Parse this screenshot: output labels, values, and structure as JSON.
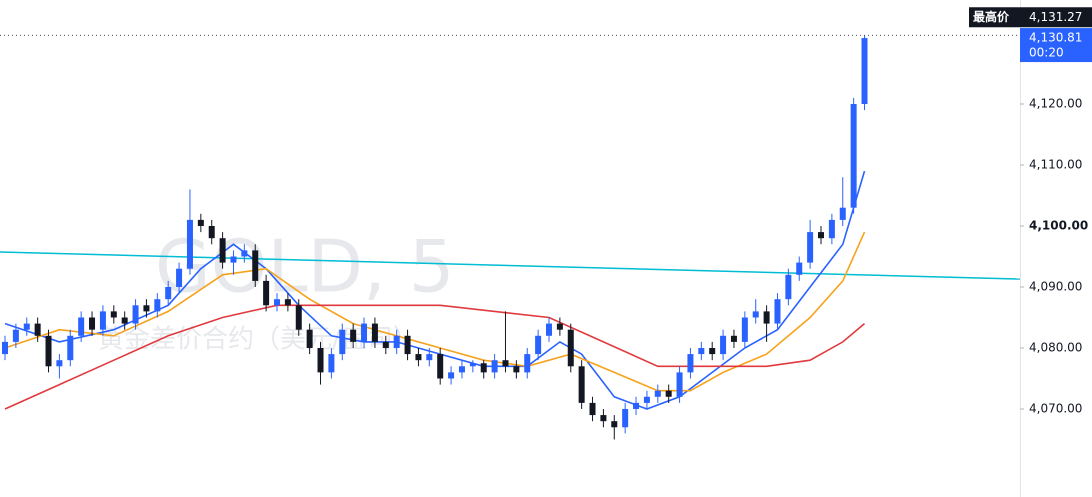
{
  "chart_data": {
    "type": "candlestick",
    "watermark": "GOLD, 5",
    "subtitle": "黄金差价合约（美元/盎司）",
    "ylim": [
      4055.57,
      4137.05
    ],
    "yticks": [
      {
        "value": 4070,
        "label": "4,070.00"
      },
      {
        "value": 4080,
        "label": "4,080.00"
      },
      {
        "value": 4090,
        "label": "4,090.00"
      },
      {
        "value": 4100,
        "label": "4,100.00"
      },
      {
        "value": 4110,
        "label": "4,110.00"
      },
      {
        "value": 4120,
        "label": "4,120.00"
      }
    ],
    "up_color": "#2962ff",
    "down_color": "#131722",
    "open": [
      4079,
      4081,
      4083,
      4084,
      4082,
      4077,
      4078,
      4082,
      4085,
      4083,
      4086,
      4085,
      4084,
      4087,
      4086,
      4088,
      4090,
      4093,
      4101,
      4100,
      4098,
      4094,
      4095,
      4096,
      4091,
      4087,
      4088,
      4087,
      4083,
      4080,
      4076,
      4079,
      4083,
      4081,
      4084,
      4081,
      4080,
      4082,
      4079,
      4078,
      4079,
      4075,
      4076,
      4077,
      4077.5,
      4076,
      4078,
      4077,
      4076,
      4079,
      4082,
      4084,
      4083,
      4077,
      4071,
      4069,
      4068,
      4067,
      4070,
      4071,
      4072,
      4073,
      4072,
      4076,
      4079,
      4080,
      4079,
      4082,
      4081,
      4085,
      4086,
      4084,
      4088,
      4092,
      4094,
      4099,
      4098,
      4101,
      4103,
      4120
    ],
    "high": [
      4082,
      4084,
      4085,
      4085,
      4083,
      4079,
      4083,
      4086,
      4086,
      4087,
      4087,
      4086,
      4088,
      4088,
      4089,
      4091,
      4094,
      4106,
      4102,
      4101,
      4099,
      4096,
      4097,
      4097,
      4092,
      4089,
      4089,
      4088,
      4084,
      4081,
      4080,
      4084,
      4084,
      4085,
      4085,
      4082,
      4083,
      4083,
      4080,
      4080,
      4080,
      4077,
      4078,
      4078,
      4078,
      4079,
      4086,
      4078,
      4080,
      4083,
      4085,
      4085,
      4084,
      4078,
      4072,
      4070,
      4069,
      4071,
      4072,
      4073,
      4074,
      4074,
      4077,
      4080,
      4081,
      4081,
      4083,
      4083,
      4086,
      4088,
      4087,
      4089,
      4093,
      4095,
      4101,
      4100,
      4102,
      4108,
      4121,
      4131.27
    ],
    "low": [
      4078,
      4080,
      4082,
      4081,
      4076,
      4075,
      4077,
      4081,
      4082,
      4082,
      4084,
      4083,
      4083,
      4085,
      4085,
      4087,
      4089,
      4092,
      4099,
      4097,
      4093,
      4092,
      4094,
      4090,
      4086,
      4086,
      4086,
      4082,
      4079,
      4074,
      4075,
      4078,
      4080,
      4080,
      4080,
      4079,
      4079,
      4078,
      4077,
      4077,
      4074,
      4074,
      4075,
      4076,
      4075,
      4075,
      4076,
      4075,
      4075,
      4078,
      4081,
      4082,
      4076,
      4070,
      4068,
      4067,
      4065,
      4066,
      4069,
      4070,
      4071,
      4071,
      4071,
      4075,
      4078,
      4078,
      4078,
      4080,
      4080,
      4084,
      4081,
      4083,
      4087,
      4091,
      4093,
      4097,
      4097,
      4100,
      4102,
      4119
    ],
    "close": [
      4081,
      4083,
      4084,
      4082,
      4077,
      4078,
      4082,
      4085,
      4083,
      4086,
      4085,
      4084,
      4087,
      4086,
      4088,
      4090,
      4093,
      4101,
      4100,
      4098,
      4094,
      4095,
      4096,
      4091,
      4087,
      4088,
      4087,
      4083,
      4080,
      4076,
      4079,
      4083,
      4081,
      4084,
      4081,
      4080,
      4082,
      4079,
      4078,
      4079,
      4075,
      4076,
      4077,
      4077.5,
      4076,
      4078,
      4077,
      4076,
      4079,
      4082,
      4084,
      4083,
      4077,
      4071,
      4069,
      4068,
      4067,
      4070,
      4071,
      4072,
      4073,
      4072,
      4076,
      4079,
      4080,
      4079,
      4082,
      4081,
      4085,
      4086,
      4084,
      4088,
      4092,
      4094,
      4099,
      4098,
      4101,
      4103,
      4120,
      4130.81
    ],
    "series": [
      {
        "color": "#2962ff",
        "x": [
          0,
          5,
          10,
          15,
          18,
          21,
          24,
          27,
          30,
          33,
          36,
          40,
          44,
          48,
          51,
          53,
          56,
          59,
          62,
          65,
          68,
          71,
          74,
          77,
          79
        ],
        "values": [
          4084,
          4081,
          4083,
          4087,
          4093,
          4097,
          4093,
          4087,
          4082,
          4081,
          4081,
          4079,
          4077,
          4077,
          4081,
          4079,
          4072,
          4070,
          4072,
          4076,
          4080,
          4083,
          4090,
          4097,
          4109
        ]
      },
      {
        "color": "#f7a21b",
        "x": [
          0,
          5,
          10,
          15,
          20,
          24,
          28,
          32,
          36,
          40,
          44,
          48,
          52,
          56,
          60,
          63,
          66,
          70,
          74,
          77,
          79
        ],
        "values": [
          4080,
          4083,
          4082,
          4086,
          4092,
          4093,
          4088,
          4084,
          4082,
          4080,
          4078,
          4077,
          4079,
          4076,
          4073,
          4073,
          4076,
          4079,
          4085,
          4091,
          4099
        ]
      },
      {
        "color": "#e03a3e",
        "x": [
          0,
          5,
          10,
          15,
          20,
          25,
          30,
          35,
          40,
          45,
          50,
          55,
          60,
          65,
          70,
          74,
          77,
          79
        ],
        "values": [
          4070,
          4074,
          4078,
          4082,
          4085,
          4087,
          4087,
          4087,
          4087,
          4086,
          4085,
          4081,
          4077,
          4077,
          4077,
          4078,
          4081,
          4084
        ]
      }
    ],
    "trendline": {
      "color": "#00bcd4",
      "values": [
        4095.74,
        4091.3
      ]
    },
    "high_marker": {
      "label": "最高价",
      "value": 4131.27,
      "value_label": "4,131.27"
    },
    "last_price": {
      "value": 4130.81,
      "value_label": "4,130.81",
      "countdown": "00:20"
    }
  }
}
